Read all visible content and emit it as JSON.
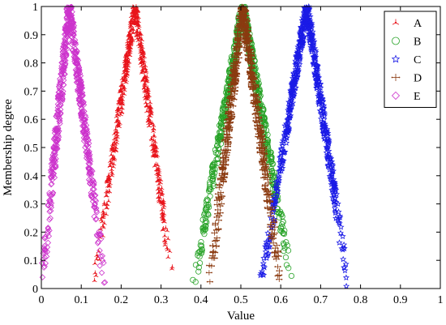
{
  "chart_data": {
    "type": "scatter",
    "xlabel": "Value",
    "ylabel": "Membership degree",
    "xlim": [
      0,
      1
    ],
    "ylim": [
      0,
      1
    ],
    "x_ticks": [
      "0",
      "0.1",
      "0.2",
      "0.3",
      "0.4",
      "0.5",
      "0.6",
      "0.7",
      "0.8",
      "0.9",
      "1"
    ],
    "y_ticks": [
      "0",
      "0.1",
      "0.2",
      "0.3",
      "0.4",
      "0.5",
      "0.6",
      "0.7",
      "0.8",
      "0.9",
      "1"
    ],
    "grid": false,
    "legend_position": "top-right",
    "series": [
      {
        "name": "A",
        "marker": "tri-star",
        "color": "#e8141b",
        "peak_x": 0.235,
        "x_range": [
          0.13,
          0.33
        ]
      },
      {
        "name": "B",
        "marker": "circle",
        "color": "#26a226",
        "peak_x": 0.505,
        "x_range": [
          0.38,
          0.63
        ]
      },
      {
        "name": "C",
        "marker": "star",
        "color": "#1a1ae6",
        "peak_x": 0.665,
        "x_range": [
          0.55,
          0.77
        ]
      },
      {
        "name": "D",
        "marker": "plus-dots",
        "color": "#8b3a10",
        "peak_x": 0.505,
        "x_range": [
          0.42,
          0.6
        ]
      },
      {
        "name": "E",
        "marker": "diamond",
        "color": "#cc33cc",
        "peak_x": 0.07,
        "x_range": [
          0.0,
          0.16
        ]
      }
    ]
  }
}
